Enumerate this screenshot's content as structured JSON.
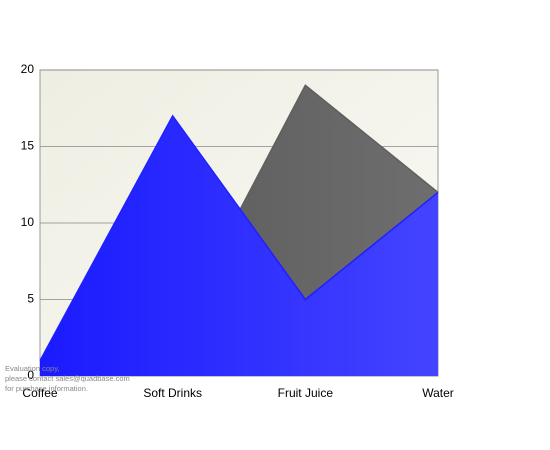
{
  "chart_data": {
    "type": "area",
    "categories": [
      "Coffee",
      "Soft Drinks",
      "Fruit Juice",
      "Water"
    ],
    "series": [
      {
        "color": "#5f5f5f",
        "values": [
          0.5,
          2.5,
          19,
          12
        ]
      },
      {
        "color": "#2020ff",
        "values": [
          1,
          17,
          5,
          12
        ]
      }
    ],
    "ylim": [
      0,
      20
    ],
    "yticks": [
      0,
      5,
      10,
      15,
      20
    ],
    "grid": true,
    "watermark": [
      "Evaluation copy,",
      "please contact sales@quadbase.com",
      "for purchase information."
    ]
  }
}
